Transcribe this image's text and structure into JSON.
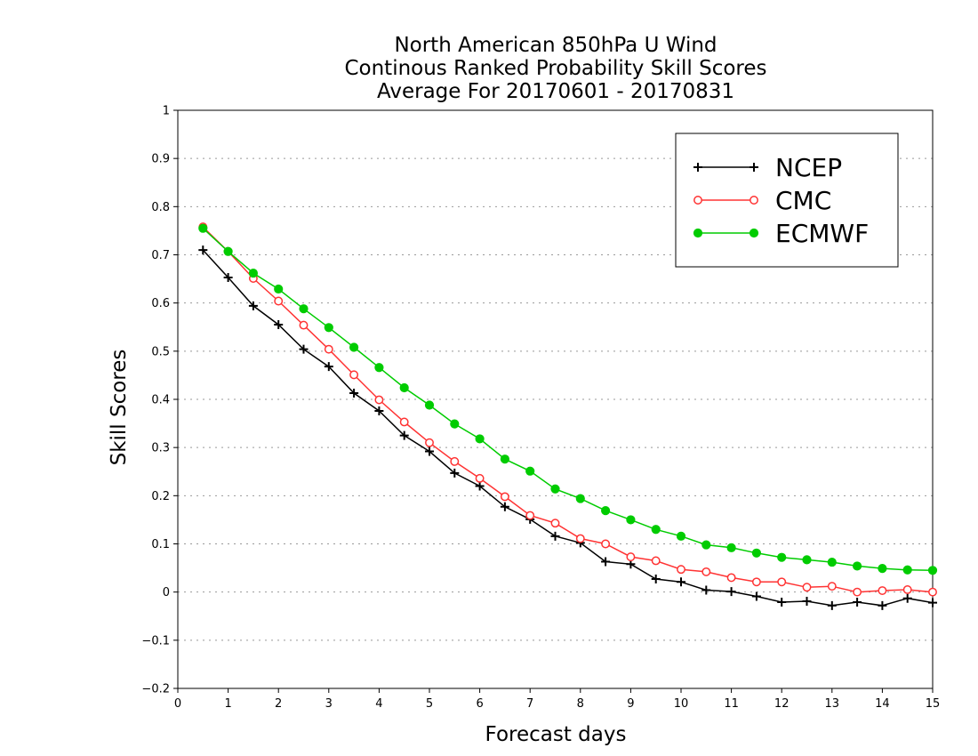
{
  "chart_data": {
    "type": "line",
    "title_lines": [
      "North American 850hPa U Wind",
      "Continous Ranked Probability Skill Scores",
      "Average For 20170601 - 20170831"
    ],
    "xlabel": "Forecast days",
    "ylabel": "Skill Scores",
    "xlim": [
      0,
      15
    ],
    "ylim": [
      -0.2,
      1
    ],
    "xticks": [
      "0",
      "1",
      "2",
      "3",
      "4",
      "5",
      "6",
      "7",
      "8",
      "9",
      "10",
      "11",
      "12",
      "13",
      "14",
      "15"
    ],
    "yticks": [
      "−0.2",
      "−0.1",
      "0",
      "0.1",
      "0.2",
      "0.3",
      "0.4",
      "0.5",
      "0.6",
      "0.7",
      "0.8",
      "0.9",
      "1"
    ],
    "y_gridlines": true,
    "legend_position": "top-right",
    "x": [
      0.5,
      1,
      1.5,
      2,
      2.5,
      3,
      3.5,
      4,
      4.5,
      5,
      5.5,
      6,
      6.5,
      7,
      7.5,
      8,
      8.5,
      9,
      9.5,
      10,
      10.5,
      11,
      11.5,
      12,
      12.5,
      13,
      13.5,
      14,
      14.5,
      15
    ],
    "series": [
      {
        "name": "NCEP",
        "color": "#000000",
        "marker": "plus",
        "values": [
          0.71,
          0.653,
          0.594,
          0.555,
          0.504,
          0.468,
          0.413,
          0.376,
          0.325,
          0.292,
          0.247,
          0.22,
          0.177,
          0.151,
          0.116,
          0.102,
          0.063,
          0.058,
          0.027,
          0.021,
          0.004,
          0.001,
          -0.009,
          -0.021,
          -0.019,
          -0.028,
          -0.021,
          -0.028,
          -0.013,
          -0.022
        ]
      },
      {
        "name": "CMC",
        "color": "#ff3333",
        "marker": "open-circle",
        "values": [
          0.758,
          0.707,
          0.651,
          0.604,
          0.554,
          0.504,
          0.451,
          0.399,
          0.353,
          0.31,
          0.271,
          0.236,
          0.198,
          0.159,
          0.143,
          0.111,
          0.1,
          0.073,
          0.065,
          0.047,
          0.042,
          0.03,
          0.021,
          0.021,
          0.01,
          0.012,
          0.0,
          0.003,
          0.005,
          0.0
        ]
      },
      {
        "name": "ECMWF",
        "color": "#00cc00",
        "marker": "filled-circle",
        "values": [
          0.755,
          0.707,
          0.662,
          0.629,
          0.588,
          0.549,
          0.508,
          0.466,
          0.424,
          0.388,
          0.349,
          0.318,
          0.276,
          0.251,
          0.214,
          0.194,
          0.169,
          0.15,
          0.13,
          0.116,
          0.098,
          0.092,
          0.081,
          0.072,
          0.067,
          0.062,
          0.054,
          0.049,
          0.046,
          0.045
        ]
      }
    ]
  }
}
